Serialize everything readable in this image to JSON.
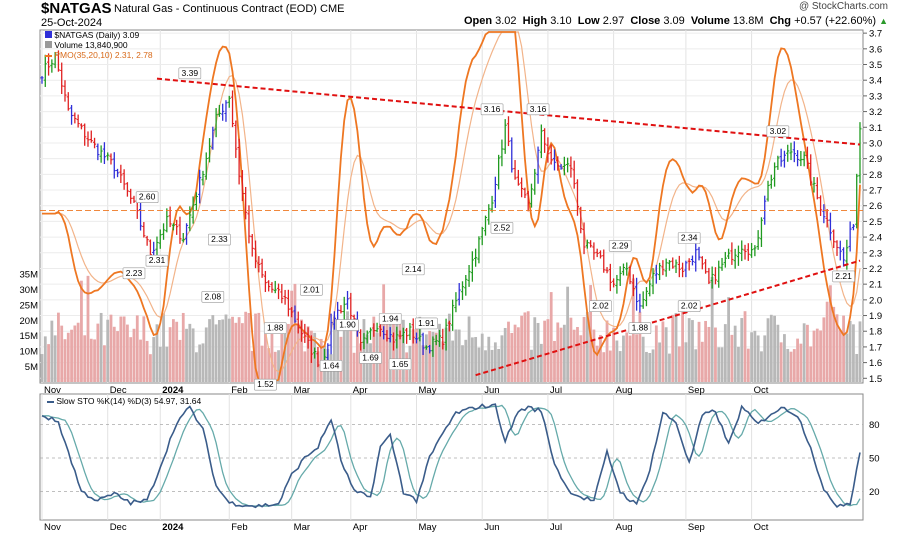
{
  "header": {
    "symbol": "$NATGAS",
    "name": "Natural Gas - Continuous Contract (EOD)",
    "exchange": "CME",
    "date": "25-Oct-2024",
    "watermark": "@ StockCharts.com",
    "open_label": "Open",
    "open": "3.02",
    "high_label": "High",
    "high": "3.10",
    "low_label": "Low",
    "low": "2.97",
    "close_label": "Close",
    "close": "3.09",
    "volume_label": "Volume",
    "volume": "13.8M",
    "chg_label": "Chg",
    "chg": "+0.57 (+22.60%)"
  },
  "legend": {
    "price": "$NATGAS (Daily) 3.09",
    "volume": "Volume 13,840,900",
    "pmo": "PMO(35,20,10) 2.31, 2.78",
    "stoch": "Slow STO %K(14) %D(3) 54.97, 31.64"
  },
  "colors": {
    "up": "#1f9a1f",
    "down": "#e02020",
    "neutral": "#2f2fd8",
    "pmo": "#ee7722",
    "pmo_signal": "#f2b48a",
    "trend": "#e01010",
    "volume_up": "#b8b8b8",
    "volume_down": "#e8a8a8",
    "stoch_k": "#3a5c8a",
    "stoch_d": "#66aaaa"
  },
  "chart_data": [
    {
      "type": "line",
      "title": "$NATGAS (Daily)",
      "description": "Daily OHLC bars, Nov 2023 - Oct 2024",
      "x_ticks": [
        "Nov",
        "Dec",
        "2024",
        "Feb",
        "Mar",
        "Apr",
        "May",
        "Jun",
        "Jul",
        "Aug",
        "Sep",
        "Oct"
      ],
      "y_ticks": [
        "1.5",
        "1.6",
        "1.7",
        "1.8",
        "1.9",
        "2.0",
        "2.1",
        "2.2",
        "2.3",
        "2.4",
        "2.5",
        "2.6",
        "2.7",
        "2.8",
        "2.9",
        "3.0",
        "3.1",
        "3.2",
        "3.3",
        "3.4",
        "3.5",
        "3.6",
        "3.7"
      ],
      "ylim": [
        1.47,
        3.72
      ],
      "volume_ticks": [
        "5M",
        "10M",
        "15M",
        "20M",
        "25M",
        "30M",
        "35M"
      ],
      "close_keypoints": [
        {
          "i": 0,
          "v": 3.45
        },
        {
          "i": 4,
          "v": 3.55
        },
        {
          "i": 8,
          "v": 3.2
        },
        {
          "i": 15,
          "v": 3.0
        },
        {
          "i": 22,
          "v": 2.85
        },
        {
          "i": 28,
          "v": 2.6
        },
        {
          "i": 33,
          "v": 2.3
        },
        {
          "i": 38,
          "v": 2.5
        },
        {
          "i": 43,
          "v": 2.4
        },
        {
          "i": 48,
          "v": 2.75
        },
        {
          "i": 53,
          "v": 3.15
        },
        {
          "i": 57,
          "v": 3.3
        },
        {
          "i": 60,
          "v": 2.8
        },
        {
          "i": 64,
          "v": 2.3
        },
        {
          "i": 68,
          "v": 2.1
        },
        {
          "i": 74,
          "v": 2.0
        },
        {
          "i": 80,
          "v": 1.75
        },
        {
          "i": 85,
          "v": 1.58
        },
        {
          "i": 89,
          "v": 1.9
        },
        {
          "i": 93,
          "v": 2.0
        },
        {
          "i": 97,
          "v": 1.7
        },
        {
          "i": 102,
          "v": 1.85
        },
        {
          "i": 107,
          "v": 1.75
        },
        {
          "i": 112,
          "v": 1.8
        },
        {
          "i": 117,
          "v": 1.7
        },
        {
          "i": 122,
          "v": 1.75
        },
        {
          "i": 127,
          "v": 2.05
        },
        {
          "i": 132,
          "v": 2.3
        },
        {
          "i": 137,
          "v": 2.65
        },
        {
          "i": 141,
          "v": 3.1
        },
        {
          "i": 144,
          "v": 2.75
        },
        {
          "i": 148,
          "v": 2.6
        },
        {
          "i": 152,
          "v": 3.05
        },
        {
          "i": 156,
          "v": 2.85
        },
        {
          "i": 161,
          "v": 2.85
        },
        {
          "i": 165,
          "v": 2.35
        },
        {
          "i": 170,
          "v": 2.25
        },
        {
          "i": 174,
          "v": 2.1
        },
        {
          "i": 178,
          "v": 2.2
        },
        {
          "i": 182,
          "v": 1.95
        },
        {
          "i": 186,
          "v": 2.15
        },
        {
          "i": 190,
          "v": 2.25
        },
        {
          "i": 195,
          "v": 2.2
        },
        {
          "i": 199,
          "v": 2.3
        },
        {
          "i": 203,
          "v": 2.1
        },
        {
          "i": 208,
          "v": 2.25
        },
        {
          "i": 213,
          "v": 2.35
        },
        {
          "i": 217,
          "v": 2.3
        },
        {
          "i": 220,
          "v": 2.65
        },
        {
          "i": 223,
          "v": 2.85
        },
        {
          "i": 228,
          "v": 2.95
        },
        {
          "i": 232,
          "v": 2.9
        },
        {
          "i": 236,
          "v": 2.65
        },
        {
          "i": 240,
          "v": 2.45
        },
        {
          "i": 244,
          "v": 2.25
        },
        {
          "i": 247,
          "v": 2.5
        },
        {
          "i": 249,
          "v": 3.09
        }
      ],
      "annotations": [
        {
          "label": "3.39",
          "i": 45,
          "v": 3.39
        },
        {
          "label": "2.60",
          "i": 32,
          "v": 2.6
        },
        {
          "label": "2.23",
          "i": 28,
          "v": 2.23
        },
        {
          "label": "2.31",
          "i": 35,
          "v": 2.31
        },
        {
          "label": "2.33",
          "i": 54,
          "v": 2.33
        },
        {
          "label": "2.08",
          "i": 52,
          "v": 2.08
        },
        {
          "label": "1.88",
          "i": 71,
          "v": 1.88
        },
        {
          "label": "1.52",
          "i": 68,
          "v": 1.52
        },
        {
          "label": "2.01",
          "i": 82,
          "v": 2.01
        },
        {
          "label": "1.90",
          "i": 93,
          "v": 1.9
        },
        {
          "label": "1.64",
          "i": 88,
          "v": 1.64
        },
        {
          "label": "1.69",
          "i": 100,
          "v": 1.69
        },
        {
          "label": "1.94",
          "i": 106,
          "v": 1.94
        },
        {
          "label": "1.65",
          "i": 109,
          "v": 1.65
        },
        {
          "label": "1.91",
          "i": 117,
          "v": 1.91
        },
        {
          "label": "2.14",
          "i": 113,
          "v": 2.14
        },
        {
          "label": "3.16",
          "i": 137,
          "v": 3.16
        },
        {
          "label": "2.52",
          "i": 140,
          "v": 2.52
        },
        {
          "label": "3.16",
          "i": 151,
          "v": 3.16
        },
        {
          "label": "2.02",
          "i": 170,
          "v": 2.02
        },
        {
          "label": "2.29",
          "i": 176,
          "v": 2.29
        },
        {
          "label": "1.88",
          "i": 182,
          "v": 1.88
        },
        {
          "label": "2.34",
          "i": 197,
          "v": 2.34
        },
        {
          "label": "2.02",
          "i": 197,
          "v": 2.02
        },
        {
          "label": "3.02",
          "i": 224,
          "v": 3.02
        },
        {
          "label": "2.21",
          "i": 244,
          "v": 2.21
        }
      ],
      "trendlines": [
        {
          "from": {
            "i": 35,
            "v": 3.41
          },
          "to": {
            "i": 249,
            "v": 2.99
          }
        },
        {
          "from": {
            "i": 132,
            "v": 1.52
          },
          "to": {
            "i": 249,
            "v": 2.25
          }
        }
      ],
      "horizontal_line": 2.57
    },
    {
      "type": "line",
      "title": "Slow STO %K(14) %D(3)",
      "y_ticks": [
        "20",
        "50",
        "80"
      ],
      "ylim": [
        0,
        100
      ],
      "k_keypoints": [
        {
          "i": 0,
          "v": 88
        },
        {
          "i": 5,
          "v": 82
        },
        {
          "i": 12,
          "v": 20
        },
        {
          "i": 17,
          "v": 12
        },
        {
          "i": 22,
          "v": 18
        },
        {
          "i": 27,
          "v": 10
        },
        {
          "i": 32,
          "v": 12
        },
        {
          "i": 37,
          "v": 50
        },
        {
          "i": 41,
          "v": 82
        },
        {
          "i": 45,
          "v": 95
        },
        {
          "i": 49,
          "v": 75
        },
        {
          "i": 53,
          "v": 25
        },
        {
          "i": 57,
          "v": 10
        },
        {
          "i": 65,
          "v": 7
        },
        {
          "i": 72,
          "v": 9
        },
        {
          "i": 76,
          "v": 35
        },
        {
          "i": 80,
          "v": 50
        },
        {
          "i": 84,
          "v": 60
        },
        {
          "i": 88,
          "v": 85
        },
        {
          "i": 91,
          "v": 48
        },
        {
          "i": 95,
          "v": 20
        },
        {
          "i": 100,
          "v": 15
        },
        {
          "i": 103,
          "v": 60
        },
        {
          "i": 106,
          "v": 70
        },
        {
          "i": 110,
          "v": 20
        },
        {
          "i": 114,
          "v": 12
        },
        {
          "i": 118,
          "v": 50
        },
        {
          "i": 122,
          "v": 72
        },
        {
          "i": 126,
          "v": 90
        },
        {
          "i": 133,
          "v": 96
        },
        {
          "i": 138,
          "v": 97
        },
        {
          "i": 141,
          "v": 65
        },
        {
          "i": 145,
          "v": 92
        },
        {
          "i": 148,
          "v": 95
        },
        {
          "i": 152,
          "v": 92
        },
        {
          "i": 156,
          "v": 45
        },
        {
          "i": 160,
          "v": 22
        },
        {
          "i": 164,
          "v": 15
        },
        {
          "i": 168,
          "v": 12
        },
        {
          "i": 172,
          "v": 55
        },
        {
          "i": 176,
          "v": 20
        },
        {
          "i": 181,
          "v": 8
        },
        {
          "i": 185,
          "v": 40
        },
        {
          "i": 189,
          "v": 90
        },
        {
          "i": 193,
          "v": 82
        },
        {
          "i": 197,
          "v": 45
        },
        {
          "i": 201,
          "v": 88
        },
        {
          "i": 205,
          "v": 92
        },
        {
          "i": 209,
          "v": 62
        },
        {
          "i": 213,
          "v": 95
        },
        {
          "i": 218,
          "v": 80
        },
        {
          "i": 222,
          "v": 90
        },
        {
          "i": 226,
          "v": 95
        },
        {
          "i": 230,
          "v": 88
        },
        {
          "i": 234,
          "v": 60
        },
        {
          "i": 238,
          "v": 20
        },
        {
          "i": 242,
          "v": 8
        },
        {
          "i": 246,
          "v": 10
        },
        {
          "i": 249,
          "v": 55
        }
      ]
    }
  ]
}
